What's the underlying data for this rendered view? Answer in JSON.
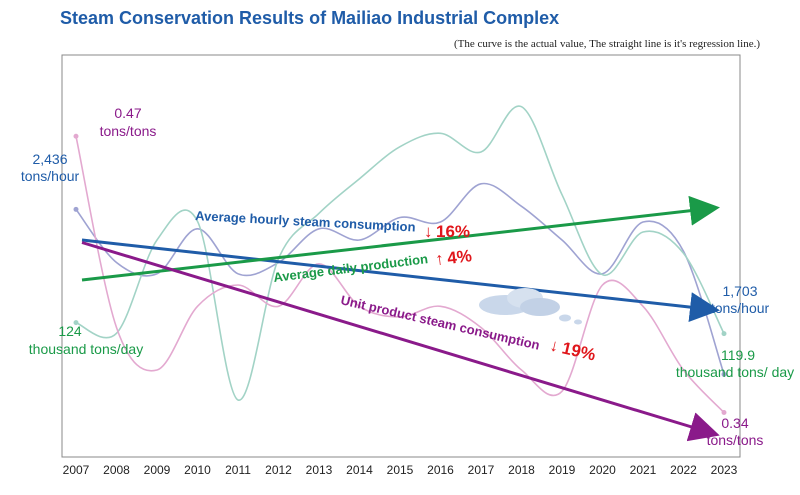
{
  "chart_data": {
    "type": "line",
    "title": "Steam Conservation Results of Mailiao Industrial Complex",
    "subtitle": "(The curve is the actual value, The straight line is it's regression line.)",
    "x": [
      "2007",
      "2008",
      "2009",
      "2010",
      "2011",
      "2012",
      "2013",
      "2014",
      "2015",
      "2016",
      "2017",
      "2018",
      "2019",
      "2020",
      "2021",
      "2022",
      "2023"
    ],
    "xlim": [
      2007,
      2023
    ],
    "series": [
      {
        "name": "Average hourly steam consumption",
        "color": "#1f5ca8",
        "curve_color": "#9fa3d2",
        "values": [
          2436,
          2200,
          2150,
          2350,
          2150,
          2200,
          2350,
          2300,
          2400,
          2380,
          2550,
          2450,
          2300,
          2150,
          2380,
          2250,
          1703
        ],
        "regression": [
          2300,
          1990
        ],
        "change_text": "Average hourly steam consumption",
        "change_arrow": "↓",
        "change_pct": "16%",
        "start_value": "2,436",
        "start_unit": "tons/hour",
        "end_value": "1,703",
        "end_unit": "tons/hour"
      },
      {
        "name": "Average daily production",
        "color": "#1a9a48",
        "curve_color": "#a2d3c6",
        "values": [
          124,
          120,
          155,
          162,
          95,
          148,
          165,
          178,
          190,
          195,
          188,
          205,
          172,
          142,
          158,
          150,
          119.9
        ],
        "regression": [
          140,
          167
        ],
        "change_text": "Average daily production",
        "change_arrow": "↑",
        "change_pct": "4%",
        "start_value": "124",
        "start_unit": "thousand tons/day",
        "end_value": "119.9",
        "end_unit": "thousand tons/ day"
      },
      {
        "name": "Unit product steam consumption",
        "color": "#8a1a8a",
        "curve_color": "#e3a9d0",
        "values": [
          0.47,
          0.38,
          0.36,
          0.39,
          0.4,
          0.39,
          0.41,
          0.39,
          0.385,
          0.39,
          0.38,
          0.36,
          0.35,
          0.4,
          0.39,
          0.36,
          0.34
        ],
        "regression": [
          0.42,
          0.33
        ],
        "change_text": "Unit product steam consumption",
        "change_arrow": "↓",
        "change_pct": "19%",
        "start_value": "0.47",
        "start_unit": "tons/tons",
        "end_value": "0.34",
        "end_unit": "tons/tons"
      }
    ],
    "xlabel": "",
    "ylabel": "",
    "grid": false,
    "legend": "none"
  }
}
